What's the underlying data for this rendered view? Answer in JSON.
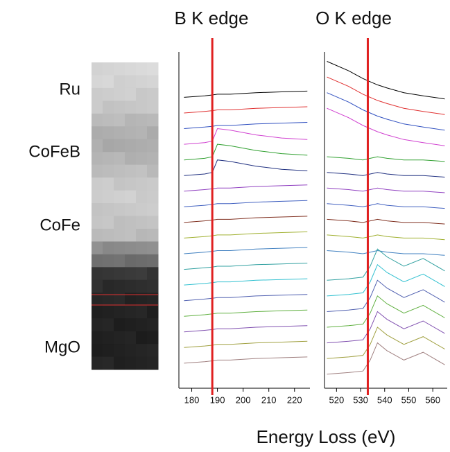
{
  "layers": [
    "Ru",
    "CoFeB",
    "CoFe",
    "MgO"
  ],
  "x_axis_label": "Energy Loss (eV)",
  "chart_data": [
    {
      "type": "line",
      "title": "B K edge",
      "edge_x": 188,
      "edge_color": "#e02020",
      "x": [
        177,
        185,
        188,
        190,
        195,
        205,
        215,
        225
      ],
      "xlim": [
        175,
        226
      ],
      "xticks": [
        180,
        190,
        200,
        210,
        220
      ],
      "ylim": [
        0,
        21.5
      ],
      "series": [
        {
          "color": "#000000",
          "values": [
            18.6,
            18.7,
            18.75,
            18.8,
            18.8,
            18.9,
            18.95,
            19.0
          ]
        },
        {
          "color": "#e03030",
          "values": [
            17.6,
            17.7,
            17.75,
            17.8,
            17.8,
            17.9,
            17.95,
            18.0
          ]
        },
        {
          "color": "#3050c0",
          "values": [
            16.6,
            16.7,
            16.75,
            16.8,
            16.8,
            16.9,
            16.95,
            17.0
          ]
        },
        {
          "color": "#d040d0",
          "values": [
            15.6,
            15.7,
            15.8,
            16.6,
            16.5,
            16.2,
            16.0,
            15.9
          ]
        },
        {
          "color": "#30a030",
          "values": [
            14.6,
            14.7,
            14.8,
            15.6,
            15.5,
            15.2,
            15.0,
            14.9
          ]
        },
        {
          "color": "#203080",
          "values": [
            13.6,
            13.7,
            13.8,
            14.6,
            14.5,
            14.2,
            14.0,
            13.9
          ]
        },
        {
          "color": "#9040c0",
          "values": [
            12.6,
            12.7,
            12.75,
            12.8,
            12.8,
            12.9,
            12.95,
            13.0
          ]
        },
        {
          "color": "#4060c0",
          "values": [
            11.6,
            11.7,
            11.75,
            11.8,
            11.8,
            11.9,
            11.95,
            12.0
          ]
        },
        {
          "color": "#803020",
          "values": [
            10.6,
            10.7,
            10.75,
            10.8,
            10.8,
            10.9,
            10.95,
            11.0
          ]
        },
        {
          "color": "#a0b030",
          "values": [
            9.6,
            9.7,
            9.75,
            9.8,
            9.8,
            9.9,
            9.95,
            10.0
          ]
        },
        {
          "color": "#4080c0",
          "values": [
            8.6,
            8.7,
            8.75,
            8.8,
            8.8,
            8.9,
            8.95,
            9.0
          ]
        },
        {
          "color": "#30a0a0",
          "values": [
            7.6,
            7.7,
            7.75,
            7.8,
            7.8,
            7.9,
            7.95,
            8.0
          ]
        },
        {
          "color": "#30c0d0",
          "values": [
            6.6,
            6.7,
            6.75,
            6.8,
            6.8,
            6.9,
            6.95,
            7.0
          ]
        },
        {
          "color": "#5060b0",
          "values": [
            5.6,
            5.7,
            5.75,
            5.8,
            5.8,
            5.9,
            5.95,
            6.0
          ]
        },
        {
          "color": "#60b040",
          "values": [
            4.6,
            4.7,
            4.75,
            4.8,
            4.8,
            4.9,
            4.95,
            5.0
          ]
        },
        {
          "color": "#8050b0",
          "values": [
            3.6,
            3.7,
            3.75,
            3.8,
            3.8,
            3.9,
            3.95,
            4.0
          ]
        },
        {
          "color": "#a0a040",
          "values": [
            2.6,
            2.7,
            2.75,
            2.8,
            2.8,
            2.9,
            2.95,
            3.0
          ]
        },
        {
          "color": "#a08080",
          "values": [
            1.6,
            1.7,
            1.75,
            1.8,
            1.8,
            1.9,
            1.95,
            2.0
          ]
        }
      ]
    },
    {
      "type": "line",
      "title": "O K edge",
      "edge_x": 533,
      "edge_color": "#e02020",
      "x": [
        516,
        525,
        531,
        534,
        537,
        541,
        548,
        556,
        565
      ],
      "xlim": [
        515,
        566
      ],
      "xticks": [
        520,
        530,
        540,
        550,
        560
      ],
      "ylim": [
        0,
        21.5
      ],
      "series": [
        {
          "color": "#000000",
          "values": [
            20.9,
            20.3,
            19.8,
            19.6,
            19.4,
            19.2,
            18.9,
            18.7,
            18.5
          ]
        },
        {
          "color": "#e03030",
          "values": [
            19.9,
            19.3,
            18.8,
            18.6,
            18.4,
            18.2,
            17.9,
            17.7,
            17.5
          ]
        },
        {
          "color": "#3050c0",
          "values": [
            18.9,
            18.3,
            17.8,
            17.6,
            17.4,
            17.2,
            16.9,
            16.7,
            16.5
          ]
        },
        {
          "color": "#d040d0",
          "values": [
            17.9,
            17.3,
            16.8,
            16.6,
            16.4,
            16.2,
            15.9,
            15.7,
            15.5
          ]
        },
        {
          "color": "#30a030",
          "values": [
            14.8,
            14.7,
            14.6,
            14.7,
            14.8,
            14.7,
            14.6,
            14.6,
            14.5
          ]
        },
        {
          "color": "#203080",
          "values": [
            13.8,
            13.7,
            13.6,
            13.7,
            13.8,
            13.7,
            13.6,
            13.6,
            13.5
          ]
        },
        {
          "color": "#9040c0",
          "values": [
            12.8,
            12.7,
            12.6,
            12.7,
            12.8,
            12.7,
            12.6,
            12.6,
            12.5
          ]
        },
        {
          "color": "#4060c0",
          "values": [
            11.8,
            11.7,
            11.6,
            11.7,
            11.8,
            11.7,
            11.6,
            11.6,
            11.5
          ]
        },
        {
          "color": "#803020",
          "values": [
            10.8,
            10.7,
            10.6,
            10.7,
            10.8,
            10.7,
            10.6,
            10.6,
            10.5
          ]
        },
        {
          "color": "#a0b030",
          "values": [
            9.8,
            9.7,
            9.6,
            9.7,
            9.8,
            9.7,
            9.6,
            9.6,
            9.5
          ]
        },
        {
          "color": "#4080c0",
          "values": [
            8.8,
            8.7,
            8.6,
            8.7,
            8.8,
            8.7,
            8.6,
            8.6,
            8.5
          ]
        },
        {
          "color": "#30a0a0",
          "values": [
            6.9,
            7.0,
            7.1,
            7.8,
            8.9,
            8.4,
            7.8,
            8.3,
            7.5
          ]
        },
        {
          "color": "#30c0d0",
          "values": [
            5.9,
            6.0,
            6.1,
            6.8,
            7.9,
            7.4,
            6.8,
            7.3,
            6.5
          ]
        },
        {
          "color": "#5060b0",
          "values": [
            4.9,
            5.0,
            5.1,
            5.8,
            6.9,
            6.4,
            5.8,
            6.3,
            5.5
          ]
        },
        {
          "color": "#60b040",
          "values": [
            3.9,
            4.0,
            4.1,
            4.8,
            5.9,
            5.4,
            4.8,
            5.3,
            4.5
          ]
        },
        {
          "color": "#8050b0",
          "values": [
            2.9,
            3.0,
            3.1,
            3.8,
            4.9,
            4.4,
            3.8,
            4.3,
            3.5
          ]
        },
        {
          "color": "#a0a040",
          "values": [
            1.9,
            2.0,
            2.1,
            2.8,
            3.9,
            3.4,
            2.8,
            3.3,
            2.5
          ]
        },
        {
          "color": "#a08080",
          "values": [
            0.9,
            1.0,
            1.1,
            1.8,
            2.9,
            2.4,
            1.8,
            2.3,
            1.5
          ]
        }
      ]
    }
  ]
}
